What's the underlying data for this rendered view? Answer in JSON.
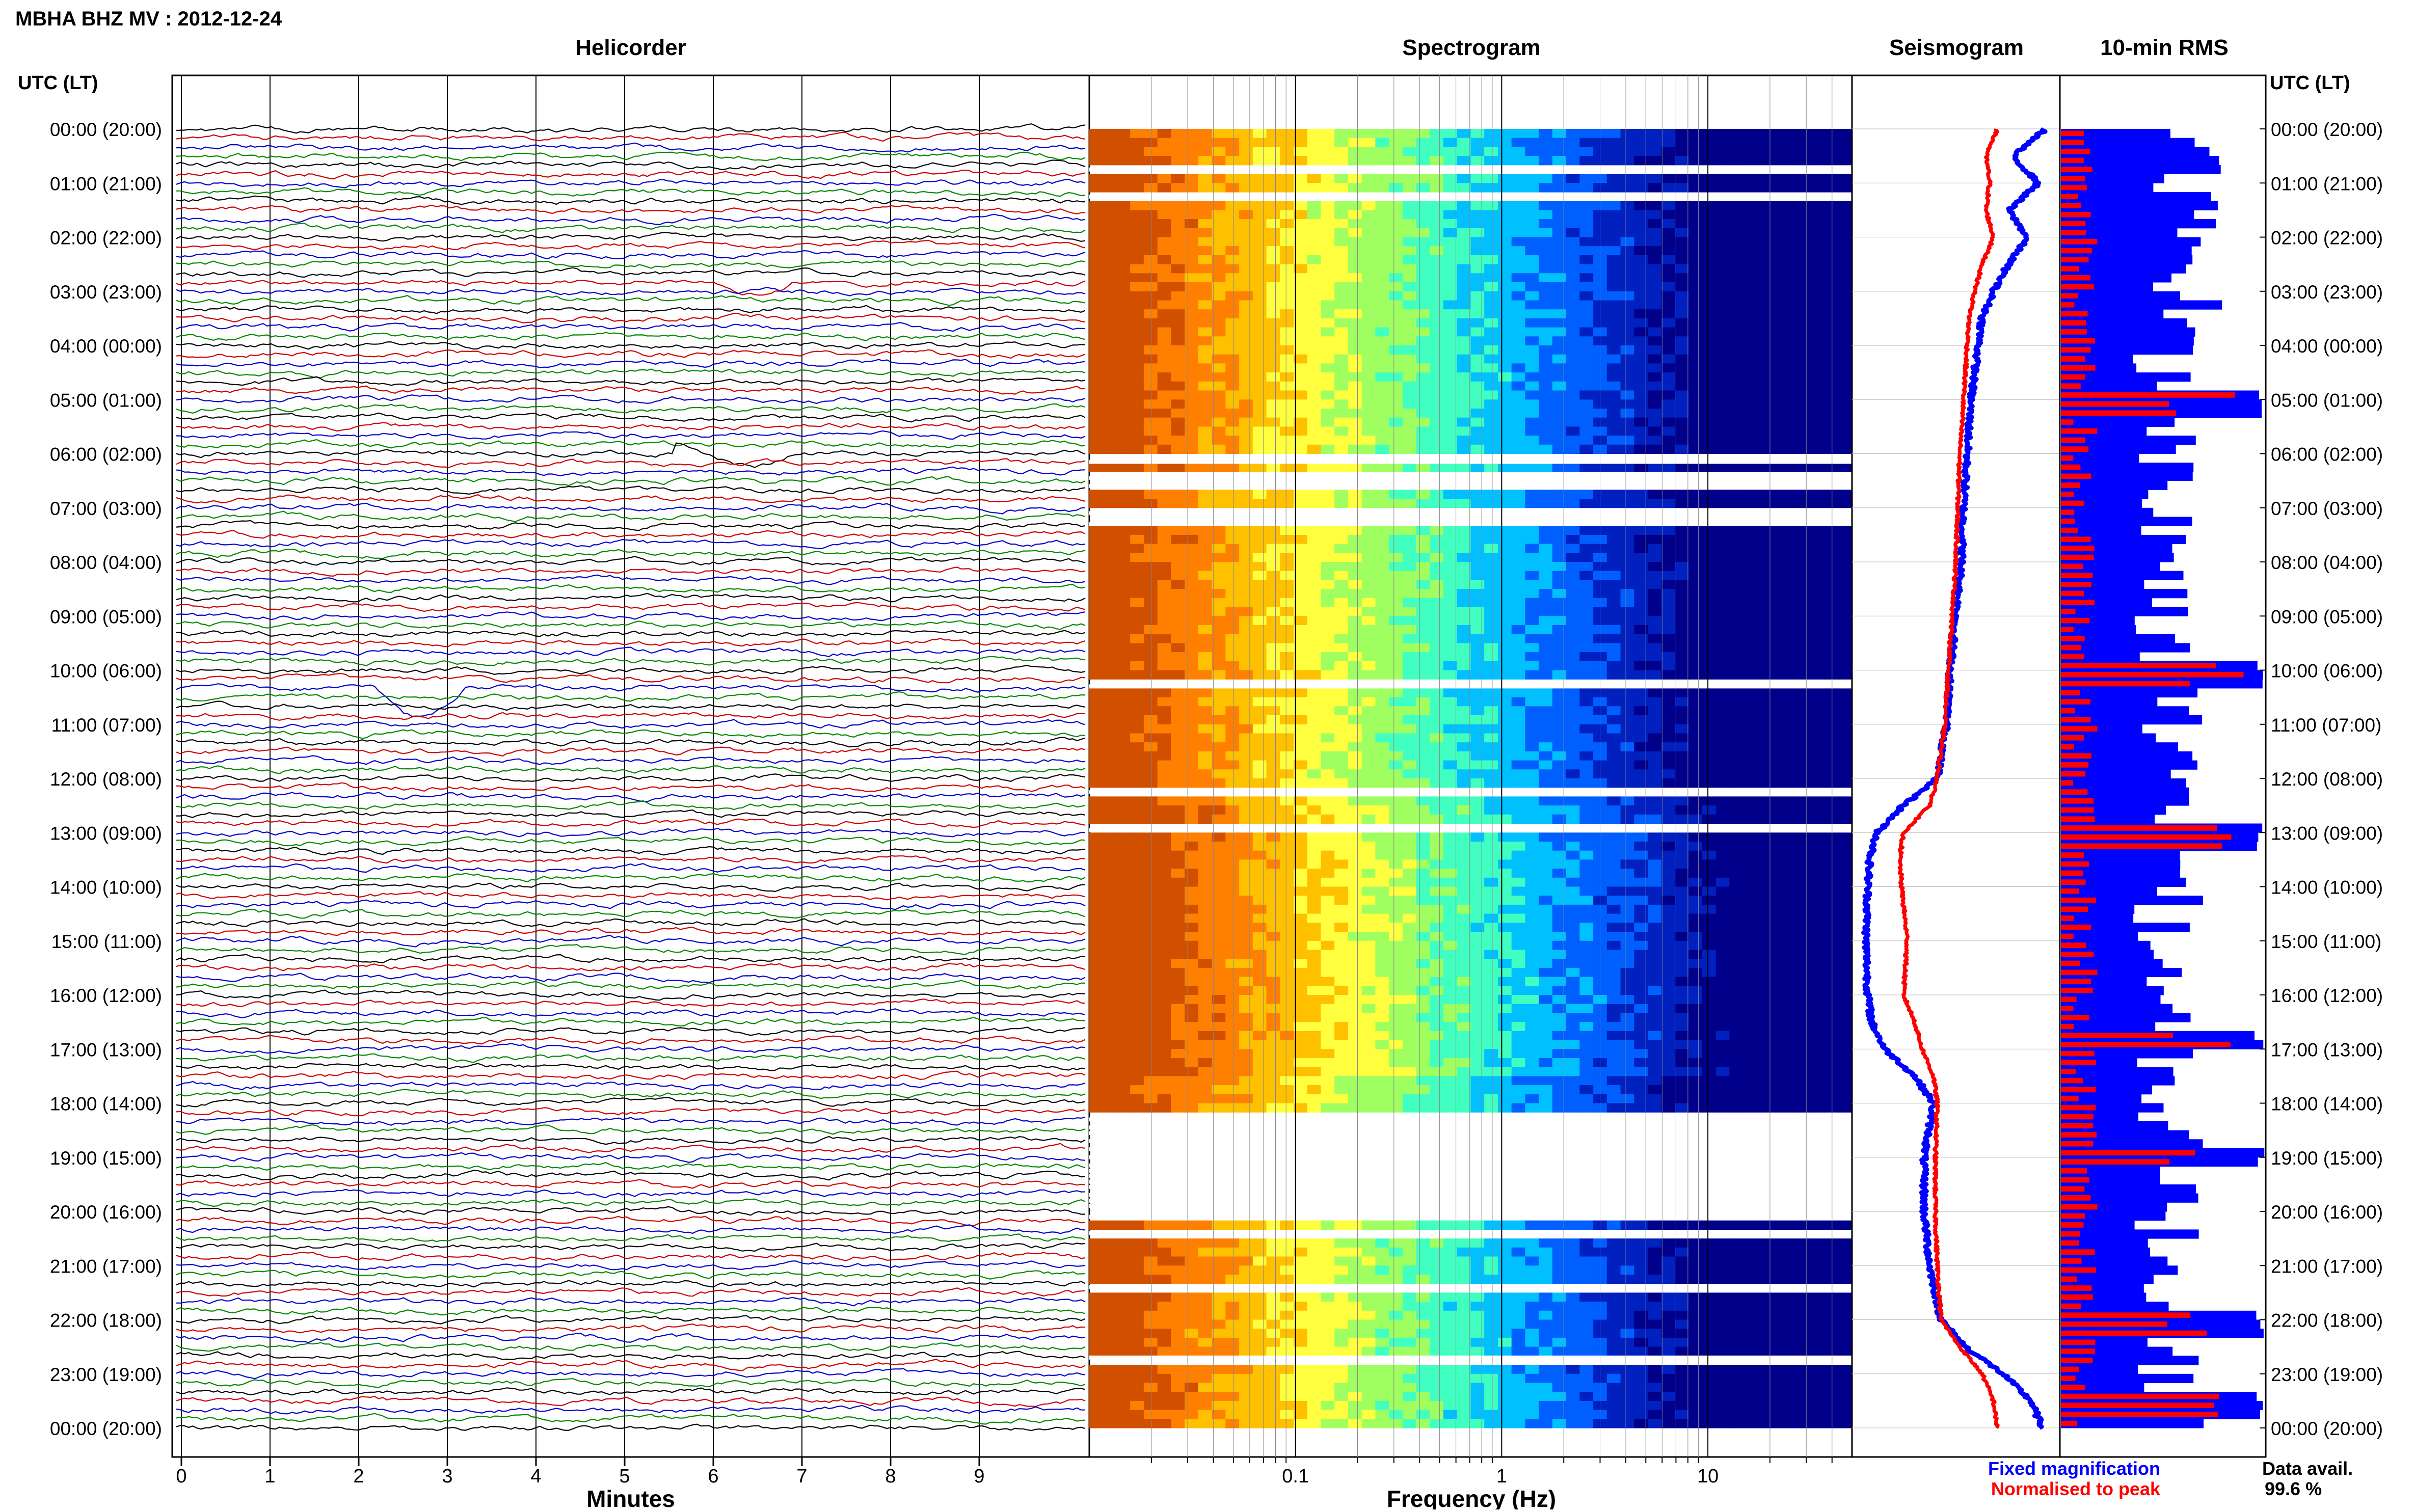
{
  "header": {
    "station_title": "MBHA BHZ MV : 2012-12-24",
    "utc_label_left": "UTC (LT)",
    "utc_label_right": "UTC (LT)"
  },
  "legend": {
    "fixed_magnification": "Fixed magnification",
    "normalised_to_peak": "Normalised to peak",
    "data_avail_label": "Data avail.",
    "data_avail_value": "99.6 %",
    "fixed_color": "#0000ff",
    "normalised_color": "#ff0000"
  },
  "chart_data": [
    {
      "type": "line",
      "panel": "helicorder",
      "title": "Helicorder",
      "xlabel": "Minutes",
      "x_ticks": [
        "0",
        "1",
        "2",
        "3",
        "4",
        "5",
        "6",
        "7",
        "8",
        "9"
      ],
      "xlim": [
        0,
        10
      ],
      "trace_colors": [
        "#000000",
        "#cc0000",
        "#0000cc",
        "#008800"
      ],
      "time_labels": [
        "00:00 (20:00)",
        "01:00 (21:00)",
        "02:00 (22:00)",
        "03:00 (23:00)",
        "04:00 (00:00)",
        "05:00 (01:00)",
        "06:00 (02:00)",
        "07:00 (03:00)",
        "08:00 (04:00)",
        "09:00 (05:00)",
        "10:00 (06:00)",
        "11:00 (07:00)",
        "12:00 (08:00)",
        "13:00 (09:00)",
        "14:00 (10:00)",
        "15:00 (11:00)",
        "16:00 (12:00)",
        "17:00 (13:00)",
        "18:00 (14:00)",
        "19:00 (15:00)",
        "20:00 (16:00)",
        "21:00 (17:00)",
        "22:00 (18:00)",
        "23:00 (19:00)",
        "00:00 (20:00)"
      ]
    },
    {
      "type": "heatmap",
      "panel": "spectrogram",
      "title": "Spectrogram",
      "xlabel": "Frequency (Hz)",
      "x_scale": "log",
      "xlim": [
        0.01,
        50
      ],
      "x_ticks": [
        "0.1",
        "1",
        "10"
      ],
      "colormap": [
        "#d05000",
        "#ff8000",
        "#ffc000",
        "#ffff40",
        "#a0ff60",
        "#40ffc0",
        "#00c0ff",
        "#0060ff",
        "#0020c0",
        "#00008a"
      ],
      "gap_hours": [
        0.75,
        1.25,
        6.15,
        6.45,
        6.6,
        7.1,
        7.3,
        10.3,
        12.25,
        12.95,
        18.3,
        18.45,
        18.55,
        18.7,
        18.85,
        19.0,
        19.15,
        19.25,
        19.35,
        19.45,
        19.55,
        19.7,
        19.8,
        19.9,
        20.1,
        20.4,
        21.4,
        22.7
      ]
    },
    {
      "type": "line",
      "panel": "seismogram",
      "title": "Seismogram",
      "hours": [
        0,
        0.5,
        1,
        1.5,
        2,
        2.5,
        3,
        3.5,
        4,
        5,
        6,
        7,
        8,
        9,
        10,
        11,
        12,
        12.5,
        13,
        13.5,
        14,
        15,
        16,
        16.5,
        17,
        17.5,
        18,
        19,
        20,
        21,
        22,
        22.5,
        23,
        23.5,
        24
      ],
      "series": [
        {
          "name": "Fixed magnification",
          "color": "#0000ff",
          "values": [
            0.98,
            0.8,
            0.94,
            0.78,
            0.88,
            0.78,
            0.7,
            0.64,
            0.62,
            0.58,
            0.56,
            0.54,
            0.53,
            0.5,
            0.47,
            0.45,
            0.4,
            0.22,
            0.08,
            0.04,
            0.03,
            0.02,
            0.03,
            0.05,
            0.12,
            0.28,
            0.38,
            0.33,
            0.33,
            0.36,
            0.42,
            0.55,
            0.75,
            0.9,
            0.96
          ]
        },
        {
          "name": "Normalised to peak",
          "color": "#ff0000",
          "values": [
            0.72,
            0.66,
            0.68,
            0.66,
            0.7,
            0.64,
            0.6,
            0.57,
            0.56,
            0.54,
            0.52,
            0.51,
            0.5,
            0.48,
            0.46,
            0.44,
            0.4,
            0.36,
            0.22,
            0.2,
            0.21,
            0.24,
            0.22,
            0.28,
            0.32,
            0.38,
            0.4,
            0.39,
            0.39,
            0.4,
            0.42,
            0.52,
            0.64,
            0.7,
            0.72
          ]
        }
      ]
    },
    {
      "type": "bar",
      "panel": "rms",
      "title": "10-min RMS",
      "orientation": "horizontal",
      "series": [
        {
          "name": "Fixed magnification",
          "color": "#0000ff"
        },
        {
          "name": "Normalised to peak",
          "color": "#ff0000"
        }
      ],
      "max_value": 1.0,
      "notable_peaks_hours": [
        5.0,
        10.0,
        13.0,
        16.8,
        18.9,
        22.0,
        23.5
      ]
    }
  ]
}
